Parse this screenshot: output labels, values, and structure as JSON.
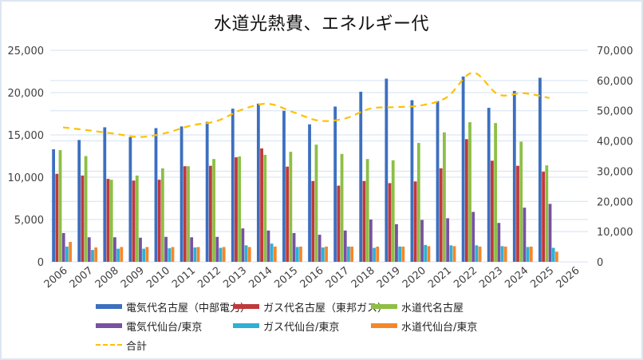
{
  "chart_data": {
    "type": "bar",
    "title": "水道光熱費、エネルギー代",
    "xlabel": "",
    "ylabel": "",
    "categories": [
      "2006",
      "2007",
      "2008",
      "2009",
      "2010",
      "2011",
      "2012",
      "2013",
      "2014",
      "2015",
      "2016",
      "2017",
      "2018",
      "2019",
      "2020",
      "2021",
      "2022",
      "2023",
      "2024",
      "2025",
      "2026"
    ],
    "ylim": [
      0,
      25000
    ],
    "y_ticks": [
      "0",
      "5,000",
      "10,000",
      "15,000",
      "20,000",
      "25,000"
    ],
    "y2lim": [
      0,
      70000
    ],
    "y2_ticks": [
      "0",
      "10,000",
      "20,000",
      "30,000",
      "40,000",
      "50,000",
      "60,000",
      "70,000"
    ],
    "grid": true,
    "legend_position": "bottom",
    "series": [
      {
        "name": "電気代名古屋（中部電力）",
        "color": "#3d6fbf",
        "axis": "left",
        "type": "bar",
        "values": [
          13300,
          14400,
          15900,
          14750,
          15800,
          16000,
          16550,
          18100,
          18700,
          17850,
          16250,
          18350,
          20100,
          21650,
          19100,
          19000,
          21900,
          18200,
          20200,
          21750,
          null
        ]
      },
      {
        "name": "ガス代名古屋（東邦ガス）",
        "color": "#c0393b",
        "axis": "left",
        "type": "bar",
        "values": [
          10400,
          10200,
          9800,
          9600,
          9700,
          11300,
          11350,
          12350,
          13400,
          11250,
          9550,
          9000,
          9550,
          9300,
          9500,
          11050,
          14500,
          11950,
          11350,
          10650,
          null
        ]
      },
      {
        "name": "水道代名古屋",
        "color": "#8dbf45",
        "axis": "left",
        "type": "bar",
        "values": [
          13200,
          12500,
          9700,
          10200,
          11050,
          11300,
          12150,
          12450,
          12650,
          13000,
          13850,
          12750,
          12150,
          12000,
          14050,
          15300,
          16500,
          16400,
          14200,
          11400,
          null
        ]
      },
      {
        "name": "電気代仙台/東京",
        "color": "#7652a0",
        "axis": "left",
        "type": "bar",
        "values": [
          3400,
          2900,
          2900,
          2850,
          2950,
          2900,
          2950,
          3950,
          3700,
          3400,
          3200,
          3700,
          5000,
          4450,
          4950,
          5150,
          5900,
          4600,
          6400,
          6850,
          null
        ]
      },
      {
        "name": "ガス代仙台/東京",
        "color": "#2fb0d4",
        "axis": "left",
        "type": "bar",
        "values": [
          1800,
          1400,
          1550,
          1550,
          1600,
          1700,
          1650,
          1950,
          2150,
          1750,
          1700,
          1800,
          1650,
          1800,
          2000,
          1950,
          1950,
          1850,
          1750,
          1650,
          null
        ]
      },
      {
        "name": "水道代仙台/東京",
        "color": "#f5872a",
        "axis": "left",
        "type": "bar",
        "values": [
          2350,
          1700,
          1750,
          1750,
          1750,
          1750,
          1750,
          1750,
          1800,
          1800,
          1800,
          1800,
          1800,
          1800,
          1850,
          1850,
          1800,
          1800,
          1800,
          1200,
          null
        ]
      },
      {
        "name": "合計",
        "color": "#ffc000",
        "axis": "right",
        "type": "line",
        "dashed": true,
        "values": [
          44500,
          43500,
          42400,
          41300,
          42600,
          45100,
          46600,
          50400,
          52300,
          49500,
          46700,
          47400,
          50700,
          51200,
          51800,
          54500,
          62600,
          55400,
          55800,
          54200,
          null
        ]
      }
    ]
  }
}
